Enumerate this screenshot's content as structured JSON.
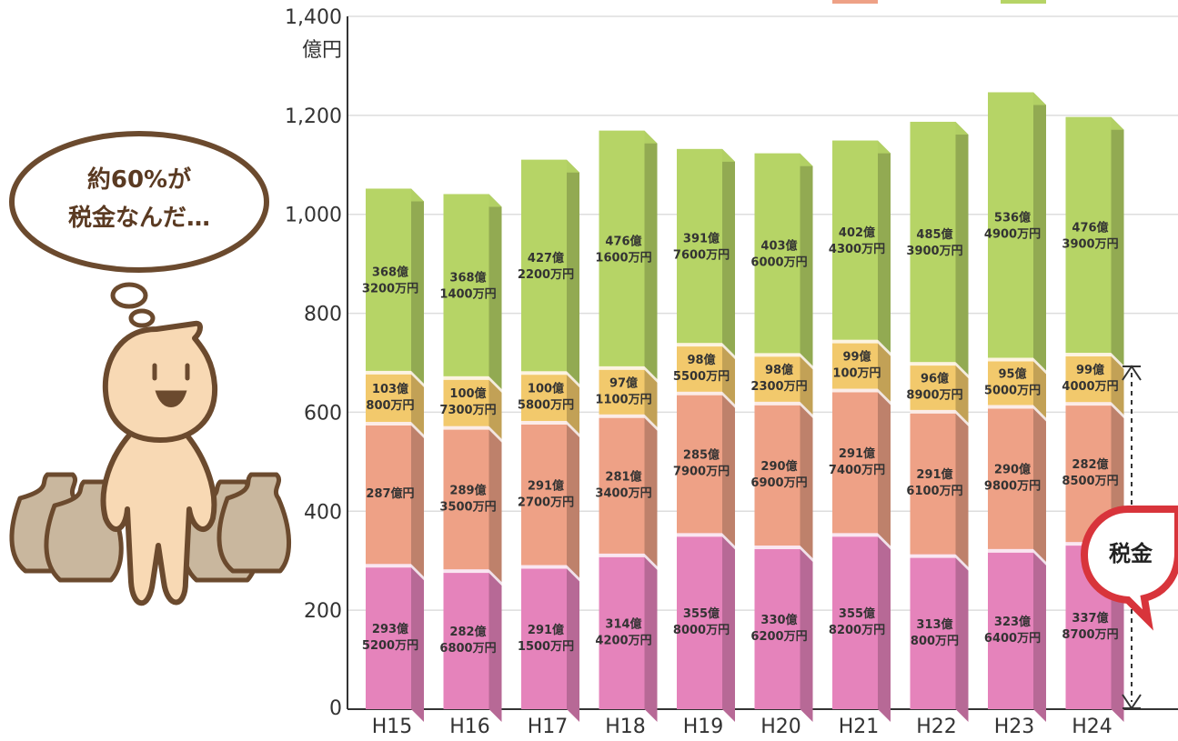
{
  "character": {
    "thought_line1": "約60%が",
    "thought_line2": "税金なんだ…"
  },
  "tax_badge": "税金",
  "colors": {
    "series1": "#e583bb",
    "series2": "#eea186",
    "series3": "#f2c96c",
    "series4": "#b6d466"
  },
  "chart_data": {
    "type": "bar",
    "stacked": true,
    "categories": [
      "H15",
      "H16",
      "H17",
      "H18",
      "H19",
      "H20",
      "H21",
      "H22",
      "H23",
      "H24"
    ],
    "ylim": [
      0,
      1400
    ],
    "yticks": [
      "0",
      "200",
      "400",
      "600",
      "800",
      "1,000",
      "1,200",
      "1,400"
    ],
    "yunit": "億円",
    "series": [
      {
        "values": [
          293.52,
          282.68,
          291.15,
          314.42,
          355.8,
          330.62,
          355.82,
          313.08,
          323.64,
          337.87
        ],
        "labels": [
          [
            "293億",
            "5200万円"
          ],
          [
            "282億",
            "6800万円"
          ],
          [
            "291億",
            "1500万円"
          ],
          [
            "314億",
            "4200万円"
          ],
          [
            "355億",
            "8000万円"
          ],
          [
            "330億",
            "6200万円"
          ],
          [
            "355億",
            "8200万円"
          ],
          [
            "313億",
            "800万円"
          ],
          [
            "323億",
            "6400万円"
          ],
          [
            "337億",
            "8700万円"
          ]
        ]
      },
      {
        "values": [
          287.0,
          289.35,
          291.27,
          281.34,
          285.79,
          290.69,
          291.74,
          291.61,
          290.98,
          282.85
        ],
        "labels": [
          [
            "287億円"
          ],
          [
            "289億",
            "3500万円"
          ],
          [
            "291億",
            "2700万円"
          ],
          [
            "281億",
            "3400万円"
          ],
          [
            "285億",
            "7900万円"
          ],
          [
            "290億",
            "6900万円"
          ],
          [
            "291億",
            "7400万円"
          ],
          [
            "291億",
            "6100万円"
          ],
          [
            "290億",
            "9800万円"
          ],
          [
            "282億",
            "8500万円"
          ]
        ]
      },
      {
        "values": [
          103.08,
          100.73,
          100.58,
          97.11,
          98.55,
          98.23,
          99.01,
          96.89,
          95.5,
          99.4
        ],
        "labels": [
          [
            "103億",
            "800万円"
          ],
          [
            "100億",
            "7300万円"
          ],
          [
            "100億",
            "5800万円"
          ],
          [
            "97億",
            "1100万円"
          ],
          [
            "98億",
            "5500万円"
          ],
          [
            "98億",
            "2300万円"
          ],
          [
            "99億",
            "100万円"
          ],
          [
            "96億",
            "8900万円"
          ],
          [
            "95億",
            "5000万円"
          ],
          [
            "99億",
            "4000万円"
          ]
        ]
      },
      {
        "values": [
          368.32,
          368.14,
          427.22,
          476.16,
          391.76,
          403.6,
          402.43,
          485.39,
          536.49,
          476.39
        ],
        "labels": [
          [
            "368億",
            "3200万円"
          ],
          [
            "368億",
            "1400万円"
          ],
          [
            "427億",
            "2200万円"
          ],
          [
            "476億",
            "1600万円"
          ],
          [
            "391億",
            "7600万円"
          ],
          [
            "403億",
            "6000万円"
          ],
          [
            "402億",
            "4300万円"
          ],
          [
            "485億",
            "3900万円"
          ],
          [
            "536億",
            "4900万円"
          ],
          [
            "476億",
            "3900万円"
          ]
        ]
      }
    ]
  }
}
